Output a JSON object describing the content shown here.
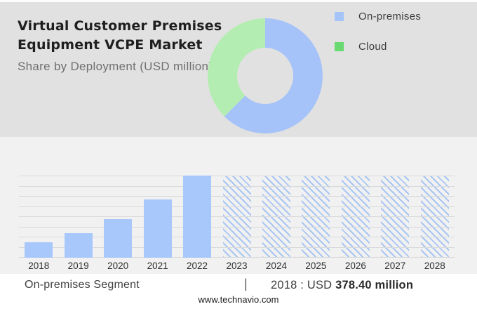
{
  "header": {
    "title_line1": "Virtual Customer Premises",
    "title_line2": "Equipment VCPE Market",
    "subtitle": "Share by Deployment (USD million)"
  },
  "legend": {
    "position": "right-of-donut",
    "items": [
      {
        "label": "On-premises",
        "swatch_color": "#a5c4f8"
      },
      {
        "label": "Cloud",
        "swatch_color": "#68da70"
      }
    ]
  },
  "chart_data": [
    {
      "type": "pie",
      "subtype": "donut",
      "title": "Share by Deployment (USD million)",
      "labels": [
        "On-premises",
        "Cloud"
      ],
      "values_pct_estimated": [
        62.5,
        37.5
      ],
      "colors": [
        "#a5c3f8",
        "#b4edb2"
      ],
      "start_angle": "top",
      "direction": "clockwise",
      "legend_position": "right"
    },
    {
      "type": "bar",
      "categories": [
        "2018",
        "2019",
        "2020",
        "2021",
        "2022",
        "2023",
        "2024",
        "2025",
        "2026",
        "2027",
        "2028"
      ],
      "relative_heights": [
        0.186,
        0.297,
        0.466,
        0.711,
        1,
        1,
        1,
        1,
        1,
        1,
        1
      ],
      "hatched": [
        false,
        false,
        false,
        false,
        false,
        true,
        true,
        true,
        true,
        true,
        true
      ],
      "hatch_meaning": "forecast years shown as full-height diagonal-hatched bars",
      "anchor_value": {
        "category": "2018",
        "value": 378.4,
        "unit": "USD million"
      },
      "bar_color": "#a8c8fb",
      "hatch_color": "#a9c6f2",
      "gridline_count": 9,
      "grid": true,
      "xlabel": "",
      "ylabel": ""
    }
  ],
  "footer": {
    "segment_label": "On-premises Segment",
    "separator": "|",
    "value_prefix": "2018 : USD ",
    "value_bold": "378.40 million",
    "website": "www.technavio.com"
  },
  "colors": {
    "top_panel_bg": "#e1e1e1",
    "chart_panel_bg": "#f1f1f2",
    "footer_bg": "#ffffff",
    "gridline": "#d9d9d9",
    "title_text": "#1f1f1f",
    "subtitle_text": "#707070"
  }
}
